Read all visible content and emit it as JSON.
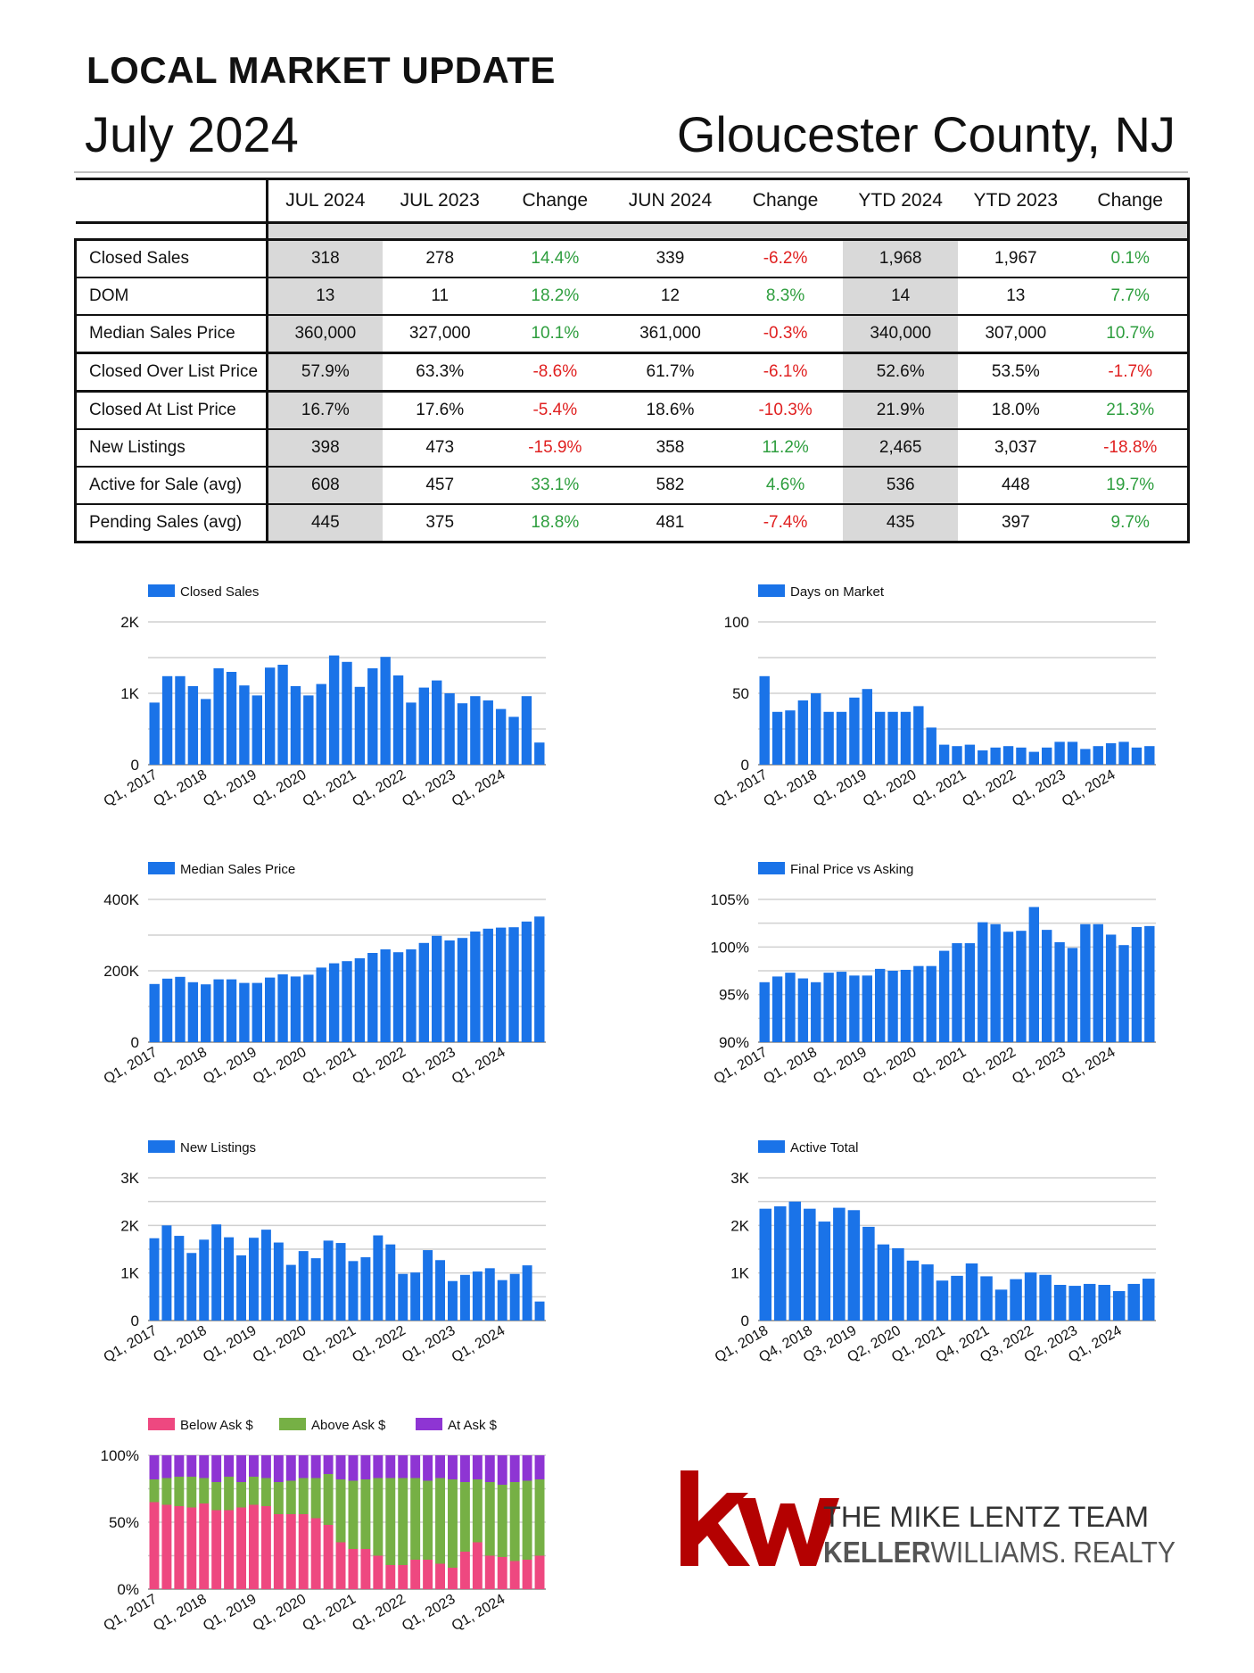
{
  "header": {
    "title": "LOCAL MARKET UPDATE",
    "date": "July 2024",
    "region": "Gloucester County, NJ"
  },
  "colors": {
    "bar": "#1a73e8",
    "positive": "#2e9e3e",
    "negative": "#e02020",
    "shade": "#d9d9d9",
    "below_ask": "#ee4880",
    "above_ask": "#76b045",
    "at_ask": "#8e35d3",
    "kw_red": "#b40101"
  },
  "table": {
    "columns": [
      "",
      "JUL 2024",
      "JUL 2023",
      "Change",
      "JUN 2024",
      "Change",
      "YTD 2024",
      "YTD 2023",
      "Change"
    ],
    "rows": [
      {
        "label": "Closed Sales",
        "values": [
          "318",
          "278",
          "14.4%",
          "339",
          "-6.2%",
          "1,968",
          "1,967",
          "0.1%"
        ]
      },
      {
        "label": "DOM",
        "values": [
          "13",
          "11",
          "18.2%",
          "12",
          "8.3%",
          "14",
          "13",
          "7.7%"
        ]
      },
      {
        "label": "Median Sales Price",
        "values": [
          "360,000",
          "327,000",
          "10.1%",
          "361,000",
          "-0.3%",
          "340,000",
          "307,000",
          "10.7%"
        ]
      },
      {
        "label": "Closed Over List Price",
        "values": [
          "57.9%",
          "63.3%",
          "-8.6%",
          "61.7%",
          "-6.1%",
          "52.6%",
          "53.5%",
          "-1.7%"
        ]
      },
      {
        "label": "Closed At List Price",
        "values": [
          "16.7%",
          "17.6%",
          "-5.4%",
          "18.6%",
          "-10.3%",
          "21.9%",
          "18.0%",
          "21.3%"
        ]
      },
      {
        "label": "New Listings",
        "values": [
          "398",
          "473",
          "-15.9%",
          "358",
          "11.2%",
          "2,465",
          "3,037",
          "-18.8%"
        ]
      },
      {
        "label": "Active for Sale (avg)",
        "values": [
          "608",
          "457",
          "33.1%",
          "582",
          "4.6%",
          "536",
          "448",
          "19.7%"
        ]
      },
      {
        "label": "Pending Sales (avg)",
        "values": [
          "445",
          "375",
          "18.8%",
          "481",
          "-7.4%",
          "435",
          "397",
          "9.7%"
        ]
      }
    ]
  },
  "chart_data": [
    {
      "type": "bar",
      "legend": "Closed Sales",
      "yticks": [
        "0",
        "1K",
        "2K"
      ],
      "ylim": [
        0,
        2000
      ],
      "xticks": [
        "Q1, 2017",
        "Q1, 2018",
        "Q1, 2019",
        "Q1, 2020",
        "Q1, 2021",
        "Q1, 2022",
        "Q1, 2023",
        "Q1, 2024"
      ],
      "values": [
        870,
        1240,
        1240,
        1100,
        920,
        1350,
        1300,
        1110,
        970,
        1360,
        1400,
        1100,
        970,
        1130,
        1530,
        1440,
        1090,
        1350,
        1510,
        1250,
        870,
        1080,
        1180,
        1000,
        860,
        960,
        900,
        780,
        670,
        960,
        310
      ]
    },
    {
      "type": "bar",
      "legend": "Days on Market",
      "yticks": [
        "0",
        "50",
        "100"
      ],
      "ylim": [
        0,
        100
      ],
      "xticks": [
        "Q1, 2017",
        "Q1, 2018",
        "Q1, 2019",
        "Q1, 2020",
        "Q1, 2021",
        "Q1, 2022",
        "Q1, 2023",
        "Q1, 2024"
      ],
      "values": [
        62,
        37,
        38,
        45,
        50,
        37,
        37,
        47,
        53,
        37,
        37,
        37,
        41,
        26,
        14,
        13,
        14,
        10,
        12,
        13,
        12,
        9,
        12,
        16,
        16,
        11,
        13,
        15,
        16,
        12,
        13
      ]
    },
    {
      "type": "bar",
      "legend": "Median Sales Price",
      "yticks": [
        "0",
        "200K",
        "400K"
      ],
      "ylim": [
        0,
        400000
      ],
      "xticks": [
        "Q1, 2017",
        "Q1, 2018",
        "Q1, 2019",
        "Q1, 2020",
        "Q1, 2021",
        "Q1, 2022",
        "Q1, 2023",
        "Q1, 2024"
      ],
      "values": [
        163000,
        178000,
        183000,
        168000,
        162000,
        176000,
        176000,
        166000,
        166000,
        181000,
        190000,
        184000,
        189000,
        209000,
        221000,
        227000,
        235000,
        250000,
        260000,
        252000,
        260000,
        278000,
        298000,
        285000,
        292000,
        310000,
        318000,
        321000,
        322000,
        338000,
        352000
      ]
    },
    {
      "type": "bar",
      "legend": "Final Price vs Asking",
      "yticks": [
        "90%",
        "95%",
        "100%",
        "105%"
      ],
      "ylim": [
        90,
        105
      ],
      "xticks": [
        "Q1, 2017",
        "Q1, 2018",
        "Q1, 2019",
        "Q1, 2020",
        "Q1, 2021",
        "Q1, 2022",
        "Q1, 2023",
        "Q1, 2024"
      ],
      "values": [
        96.3,
        96.9,
        97.3,
        96.7,
        96.3,
        97.3,
        97.4,
        97.0,
        97.0,
        97.7,
        97.5,
        97.6,
        98.0,
        98.0,
        99.6,
        100.4,
        100.4,
        102.6,
        102.4,
        101.6,
        101.7,
        104.2,
        101.8,
        100.5,
        99.9,
        102.4,
        102.4,
        101.3,
        100.2,
        102.1,
        102.2
      ]
    },
    {
      "type": "bar",
      "legend": "New Listings",
      "yticks": [
        "0",
        "1K",
        "2K",
        "3K"
      ],
      "ylim": [
        0,
        3000
      ],
      "xticks": [
        "Q1, 2017",
        "Q1, 2018",
        "Q1, 2019",
        "Q1, 2020",
        "Q1, 2021",
        "Q1, 2022",
        "Q1, 2023",
        "Q1, 2024"
      ],
      "values": [
        1730,
        2000,
        1780,
        1420,
        1700,
        2020,
        1750,
        1370,
        1740,
        1910,
        1640,
        1170,
        1460,
        1310,
        1680,
        1630,
        1250,
        1330,
        1790,
        1600,
        980,
        1010,
        1480,
        1270,
        830,
        960,
        1030,
        1100,
        850,
        980,
        1160,
        400
      ]
    },
    {
      "type": "bar",
      "legend": "Active Total",
      "yticks": [
        "0",
        "1K",
        "2K",
        "3K"
      ],
      "ylim": [
        0,
        3000
      ],
      "xticks": [
        "Q1, 2018",
        "Q4, 2018",
        "Q3, 2019",
        "Q2, 2020",
        "Q1, 2021",
        "Q4, 2021",
        "Q3, 2022",
        "Q2, 2023",
        "Q1, 2024"
      ],
      "values": [
        2350,
        2400,
        2500,
        2350,
        2080,
        2370,
        2320,
        1970,
        1600,
        1520,
        1260,
        1180,
        840,
        940,
        1200,
        930,
        650,
        870,
        1010,
        960,
        750,
        730,
        770,
        750,
        620,
        770,
        880
      ]
    },
    {
      "type": "bar",
      "stacked": "percent",
      "yticks": [
        "0%",
        "50%",
        "100%"
      ],
      "ylim": [
        0,
        100
      ],
      "xticks": [
        "Q1, 2017",
        "Q1, 2018",
        "Q1, 2019",
        "Q1, 2020",
        "Q1, 2021",
        "Q1, 2022",
        "Q1, 2023",
        "Q1, 2024"
      ],
      "series": [
        {
          "name": "Below Ask $",
          "values": [
            65,
            63,
            62,
            61,
            64,
            59,
            59,
            61,
            63,
            62,
            56,
            56,
            56,
            53,
            48,
            35,
            30,
            30,
            25,
            18,
            18,
            22,
            22,
            19,
            16,
            28,
            35,
            25,
            24,
            21,
            22,
            25
          ]
        },
        {
          "name": "Above Ask $",
          "values": [
            17,
            20,
            22,
            23,
            19,
            21,
            25,
            19,
            21,
            21,
            24,
            25,
            27,
            30,
            38,
            47,
            51,
            52,
            58,
            65,
            65,
            61,
            59,
            64,
            66,
            52,
            47,
            55,
            54,
            59,
            59,
            57
          ]
        },
        {
          "name": "At Ask $",
          "values": [
            18,
            17,
            16,
            16,
            17,
            20,
            16,
            20,
            16,
            17,
            20,
            19,
            17,
            17,
            14,
            18,
            19,
            18,
            17,
            17,
            17,
            17,
            19,
            17,
            18,
            20,
            18,
            20,
            22,
            20,
            19,
            18
          ]
        }
      ]
    }
  ],
  "logo": {
    "mark": "kw",
    "team": "THE MIKE LENTZ TEAM",
    "brand_bold": "KELLER",
    "brand_thin": "WILLIAMS.",
    "brand_suffix": "REALTY"
  }
}
